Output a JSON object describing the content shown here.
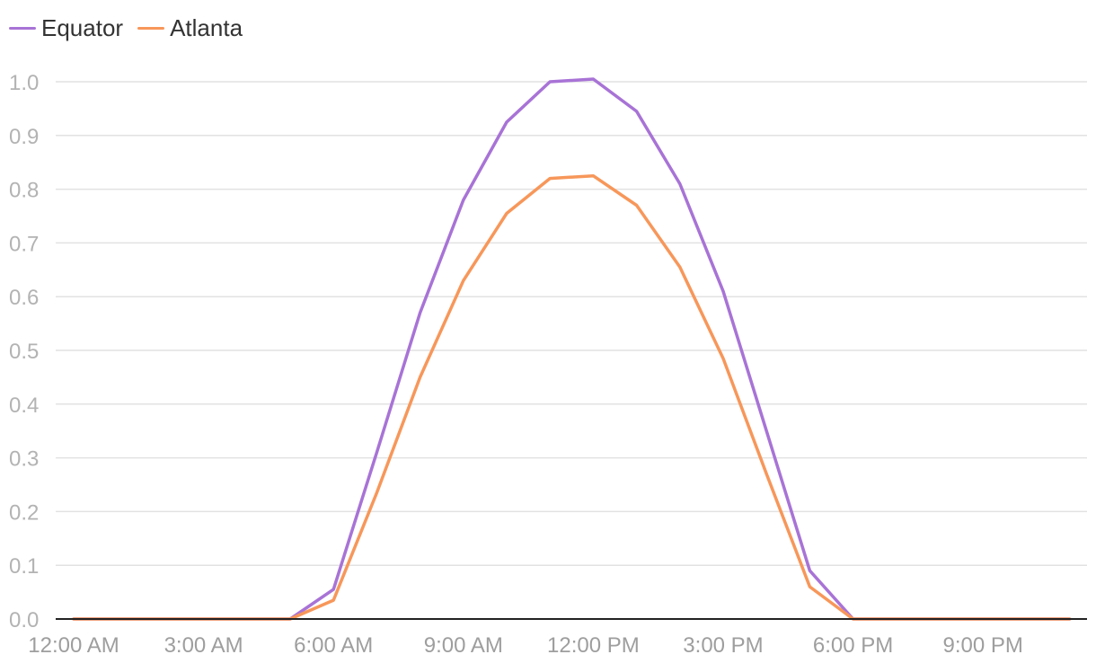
{
  "chart_data": {
    "type": "line",
    "x": [
      "12:00 AM",
      "1:00 AM",
      "2:00 AM",
      "3:00 AM",
      "4:00 AM",
      "5:00 AM",
      "6:00 AM",
      "7:00 AM",
      "8:00 AM",
      "9:00 AM",
      "10:00 AM",
      "11:00 AM",
      "12:00 PM",
      "1:00 PM",
      "2:00 PM",
      "3:00 PM",
      "4:00 PM",
      "5:00 PM",
      "6:00 PM",
      "7:00 PM",
      "8:00 PM",
      "9:00 PM",
      "10:00 PM",
      "11:00 PM"
    ],
    "x_tick_labels": [
      "12:00 AM",
      "3:00 AM",
      "6:00 AM",
      "9:00 AM",
      "12:00 PM",
      "3:00 PM",
      "6:00 PM",
      "9:00 PM"
    ],
    "y_ticks": [
      "0.0",
      "0.1",
      "0.2",
      "0.3",
      "0.4",
      "0.5",
      "0.6",
      "0.7",
      "0.8",
      "0.9",
      "1.0"
    ],
    "ylim": [
      0,
      1.0
    ],
    "grid": true,
    "legend_position": "top-left",
    "series": [
      {
        "name": "Equator",
        "color": "#a873d6",
        "values": [
          0,
          0,
          0,
          0,
          0,
          0,
          0.055,
          0.31,
          0.57,
          0.78,
          0.925,
          1.0,
          1.005,
          0.945,
          0.81,
          0.61,
          0.35,
          0.09,
          0,
          0,
          0,
          0,
          0,
          0
        ]
      },
      {
        "name": "Atlanta",
        "color": "#f7975a",
        "values": [
          0,
          0,
          0,
          0,
          0,
          0,
          0.035,
          0.235,
          0.45,
          0.63,
          0.755,
          0.82,
          0.825,
          0.77,
          0.655,
          0.485,
          0.27,
          0.06,
          0,
          0,
          0,
          0,
          0,
          0
        ]
      }
    ]
  }
}
